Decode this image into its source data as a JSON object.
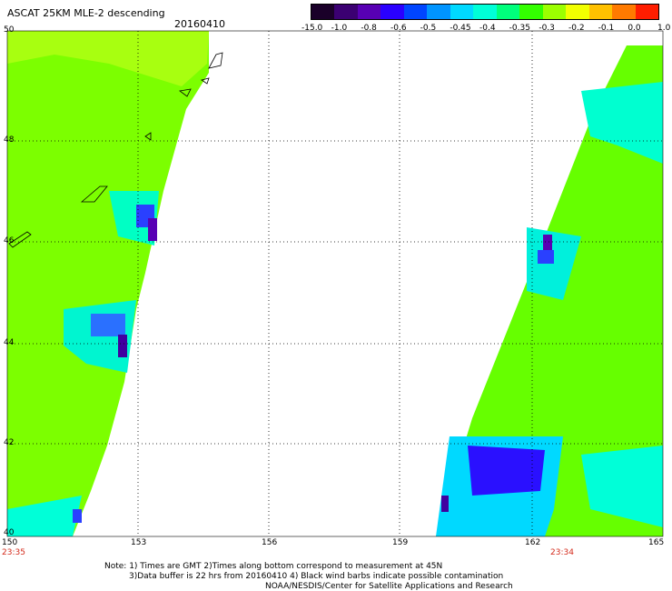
{
  "title": "ASCAT 25KM MLE-2 descending",
  "date": "20160410",
  "colorbar": {
    "ticks": [
      "-15.0",
      "-1.0",
      "-0.8",
      "-0.6",
      "-0.5",
      "-0.45",
      "-0.4",
      "-0.35",
      "-0.3",
      "-0.2",
      "-0.1",
      "0.0",
      "1.0"
    ],
    "colors": [
      "#1a0029",
      "#3b0072",
      "#5800b4",
      "#2a00ff",
      "#0045ff",
      "#0094ff",
      "#00d9ff",
      "#00ffd8",
      "#00ff7c",
      "#33ff00",
      "#9cff00",
      "#f2ff00",
      "#ffc000",
      "#ff7a00",
      "#ff1d00"
    ]
  },
  "lat_labels": [
    "50",
    "48",
    "46",
    "44",
    "42",
    "40"
  ],
  "lon_labels": [
    "150",
    "153",
    "156",
    "159",
    "162",
    "165"
  ],
  "time_labels": {
    "left": "23:35",
    "right": "23:34"
  },
  "notes": [
    "Note: 1) Times are GMT 2)Times along bottom correspond to measurement at 45N",
    "3)Data buffer is 22 hrs from 20160410 4) Black wind barbs indicate possible contamination",
    "NOAA/NESDIS/Center for Satellite Applications and Research"
  ],
  "colors": {
    "swath_green": "#66ff00",
    "swath_yellowgreen": "#9cff00",
    "cyan": "#00ffd8",
    "blue": "#2a00ff",
    "purple": "#5800b4",
    "time_red": "#d42a1b"
  }
}
